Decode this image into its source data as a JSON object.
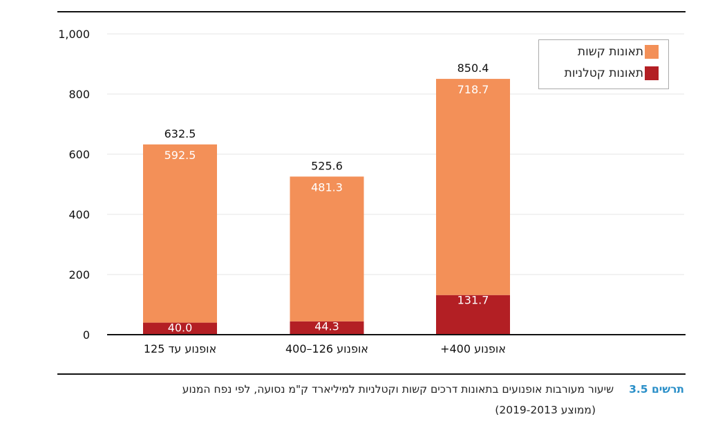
{
  "chart_data": {
    "type": "bar",
    "stacked": true,
    "categories": [
      "אופנוע עד 125",
      "אופנוע 126–400",
      "אופנוע 400+"
    ],
    "series": [
      {
        "name": "תאונות קטלניות",
        "values": [
          40.0,
          44.3,
          131.7
        ],
        "color": "#b31f24"
      },
      {
        "name": "תאונות קשות",
        "values": [
          592.5,
          481.3,
          718.7
        ],
        "color": "#f39058"
      }
    ],
    "totals": [
      "632.5",
      "525.6",
      "850.4"
    ],
    "value_labels": {
      "fatal": [
        "40.0",
        "44.3",
        "131.7"
      ],
      "severe": [
        "592.5",
        "481.3",
        "718.7"
      ]
    },
    "yticks": [
      "0",
      "200",
      "400",
      "600",
      "800",
      "1,000"
    ],
    "ytick_values": [
      0,
      200,
      400,
      600,
      800,
      1000
    ],
    "ylim": [
      0,
      1000
    ],
    "grid": true,
    "legend_position": "top-right",
    "legend": [
      "תאונות קשות",
      "תאונות קטלניות"
    ],
    "xlabel": "",
    "ylabel": ""
  },
  "caption": {
    "number": "תרשים 3.5",
    "title": "שיעור מעורבות אופנועים בתאונות דרכים קשות וקטלניות למיליארד ק\"מ נסועה, לפי נפח המנוע",
    "subtitle": "(ממוצע 2019-2013)"
  }
}
